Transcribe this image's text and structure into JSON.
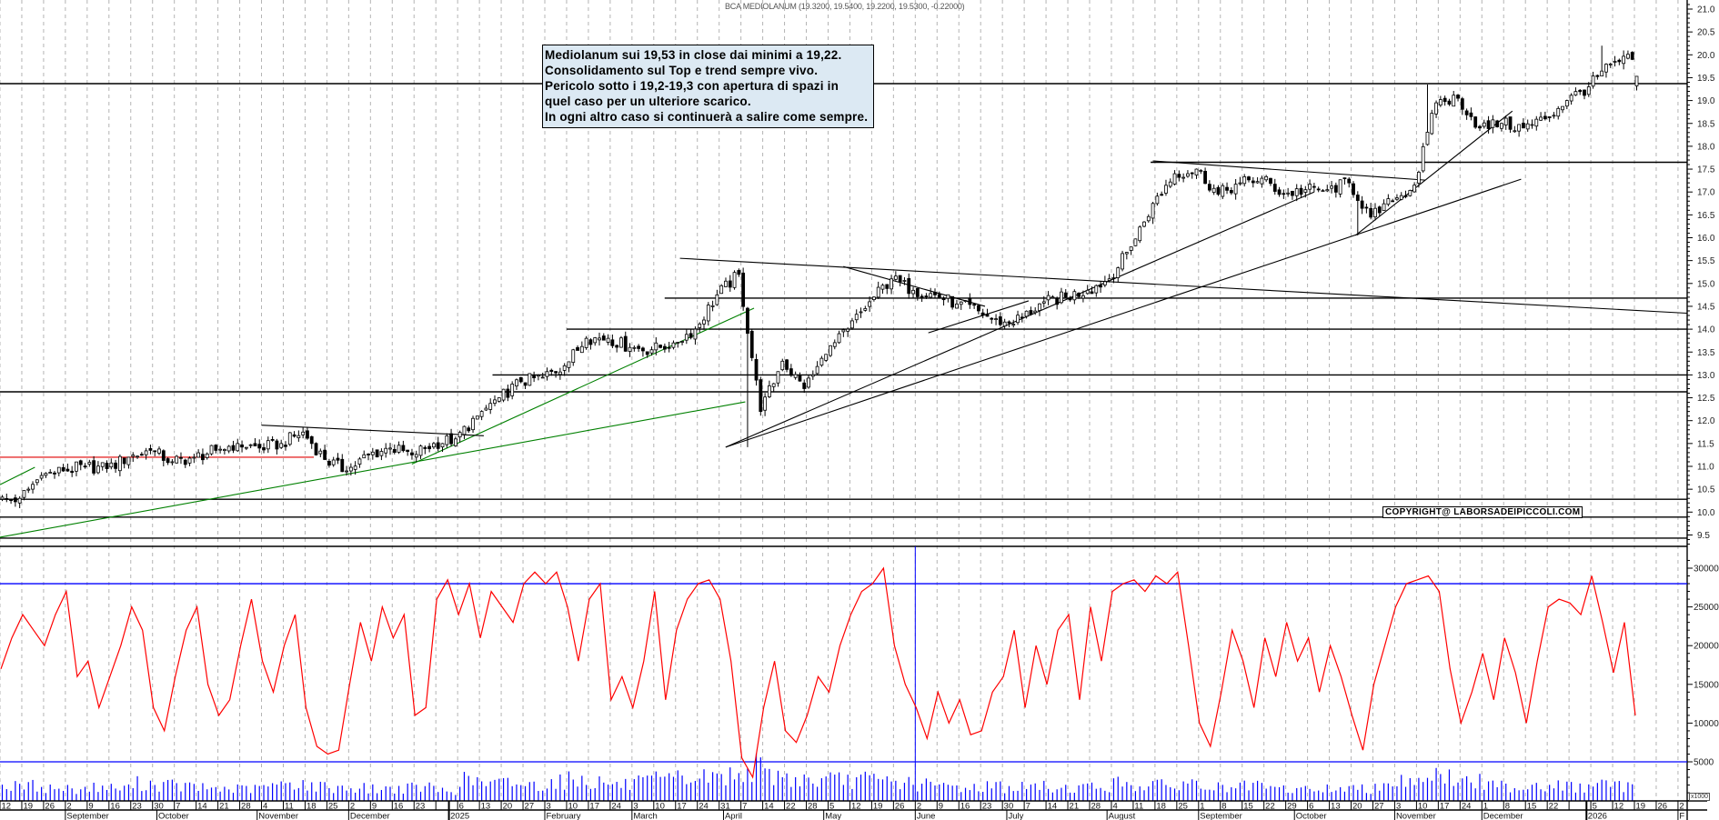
{
  "header": {
    "title": "BCA MEDIOLANUM (19.3200, 19.5400, 19.2200, 19.5300, -0.22000)"
  },
  "annotation": {
    "lines": [
      "Mediolanum sui 19,53 in close dai minimi a 19,22.",
      "Consolidamento sul Top e trend sempre vivo.",
      "Pericolo sotto i 19,2-19,3 con apertura di spazi in",
      "quel caso per un ulteriore scarico.",
      "In ogni altro caso si continuerà a salire come sempre."
    ]
  },
  "copyright": "COPYRIGHT@ LABORSADEIPICCOLI.COM",
  "chart_data": {
    "type": "candlestick",
    "title": "BCA MEDIOLANUM (19.3200, 19.5400, 19.2200, 19.5300, -0.22000)",
    "colors": {
      "up": "#ffffff",
      "down": "#000000",
      "grid": "#b4b4b4",
      "indicator": "#ff0000",
      "volume": "#0000ff",
      "levels_blue": "#0000ff",
      "green": "#008000",
      "red": "#e00000"
    },
    "x_tick_labels": [
      "12",
      "19",
      "26",
      "2",
      "9",
      "16",
      "23",
      "30",
      "7",
      "14",
      "21",
      "28",
      "4",
      "11",
      "18",
      "25",
      "2",
      "9",
      "16",
      "23",
      "",
      "6",
      "13",
      "20",
      "27",
      "3",
      "10",
      "17",
      "24",
      "3",
      "10",
      "17",
      "24",
      "31",
      "7",
      "14",
      "22",
      "28",
      "5",
      "12",
      "19",
      "26",
      "2",
      "9",
      "16",
      "23",
      "30",
      "7",
      "14",
      "21",
      "28",
      "4",
      "11",
      "18",
      "25",
      "1",
      "8",
      "15",
      "22",
      "29",
      "6",
      "13",
      "20",
      "27",
      "3",
      "10",
      "17",
      "24",
      "1",
      "8",
      "15",
      "22",
      "",
      "5",
      "12",
      "19",
      "26",
      "2"
    ],
    "month_labels": [
      {
        "label": "September",
        "week": 3
      },
      {
        "label": "October",
        "week": 7.2
      },
      {
        "label": "November",
        "week": 11.8
      },
      {
        "label": "December",
        "week": 16
      },
      {
        "label": "2025",
        "week": 20.6
      },
      {
        "label": "February",
        "week": 25
      },
      {
        "label": "March",
        "week": 29
      },
      {
        "label": "April",
        "week": 33.2
      },
      {
        "label": "May",
        "week": 37.8
      },
      {
        "label": "June",
        "week": 42
      },
      {
        "label": "July",
        "week": 46.2
      },
      {
        "label": "August",
        "week": 50.8
      },
      {
        "label": "September",
        "week": 55
      },
      {
        "label": "October",
        "week": 59.4
      },
      {
        "label": "November",
        "week": 64
      },
      {
        "label": "December",
        "week": 68
      },
      {
        "label": "2026",
        "week": 72.8
      },
      {
        "label": "F",
        "week": 77
      }
    ],
    "price_axis": {
      "min": 9.5,
      "max": 21.0,
      "ticks": [
        "9.5",
        "10.0",
        "10.5",
        "11.0",
        "11.5",
        "12.0",
        "12.5",
        "13.0",
        "13.5",
        "14.0",
        "14.5",
        "15.0",
        "15.5",
        "16.0",
        "16.5",
        "17.0",
        "17.5",
        "18.0",
        "18.5",
        "19.0",
        "19.5",
        "20.0",
        "20.5",
        "21.0"
      ]
    },
    "weekly_close": [
      10.3,
      10.8,
      10.9,
      11.0,
      10.95,
      11.2,
      11.35,
      11.1,
      11.2,
      11.35,
      11.5,
      11.4,
      11.5,
      11.75,
      11.15,
      10.9,
      11.25,
      11.4,
      11.25,
      11.5,
      11.6,
      12.1,
      12.5,
      12.85,
      12.95,
      13.2,
      13.8,
      13.8,
      13.6,
      13.55,
      13.7,
      14.0,
      14.75,
      15.2,
      12.2,
      13.3,
      12.7,
      13.45,
      14.0,
      14.6,
      15.1,
      14.85,
      14.75,
      14.55,
      14.4,
      14.1,
      14.25,
      14.6,
      14.7,
      14.85,
      15.1,
      15.8,
      16.75,
      17.4,
      17.5,
      16.95,
      17.2,
      17.3,
      16.95,
      17.05,
      17.05,
      17.2,
      16.45,
      16.8,
      17.15,
      18.95,
      19.05,
      18.4,
      18.5,
      18.4,
      18.6,
      19.0,
      19.3,
      19.8,
      19.9
    ],
    "last_candle": {
      "week": 75,
      "open": 19.32,
      "high": 19.54,
      "low": 19.22,
      "close": 19.53
    },
    "annotated_lows": [
      {
        "week": 34,
        "low": 11.42
      },
      {
        "week": 62,
        "low": 16.05
      }
    ],
    "annotated_highs": [
      {
        "week": 73,
        "high": 20.2
      },
      {
        "week": 65,
        "high": 19.35
      }
    ],
    "horizontal_levels": [
      {
        "price": 19.37,
        "from_week": 0
      },
      {
        "price": 17.65,
        "from_week": 52.8
      },
      {
        "price": 14.68,
        "from_week": 30.5
      },
      {
        "price": 14.0,
        "from_week": 26
      },
      {
        "price": 13.0,
        "from_week": 22.6
      },
      {
        "price": 12.63,
        "from_week": 0
      },
      {
        "price": 10.28,
        "from_week": 0
      },
      {
        "price": 9.89,
        "from_week": 0
      },
      {
        "price": 9.43,
        "from_week": 0
      }
    ],
    "trendlines": [
      {
        "color": "green",
        "points": [
          [
            0,
            9.45
          ],
          [
            34.2,
            12.41
          ]
        ]
      },
      {
        "color": "green",
        "points": [
          [
            18.9,
            11.05
          ],
          [
            34.6,
            14.46
          ]
        ]
      },
      {
        "color": "green",
        "points": [
          [
            0,
            10.6
          ],
          [
            1.6,
            10.98
          ]
        ]
      },
      {
        "color": "red",
        "points": [
          [
            0,
            11.2
          ],
          [
            14.4,
            11.2
          ]
        ]
      },
      {
        "color": "black",
        "points": [
          [
            12,
            11.9
          ],
          [
            22.2,
            11.67
          ]
        ]
      },
      {
        "color": "black",
        "points": [
          [
            31.2,
            15.55
          ],
          [
            77.4,
            14.35
          ]
        ]
      },
      {
        "color": "black",
        "points": [
          [
            33.3,
            11.42
          ],
          [
            60.3,
            17.0
          ]
        ]
      },
      {
        "color": "black",
        "points": [
          [
            33.3,
            11.42
          ],
          [
            69.8,
            17.28
          ]
        ]
      },
      {
        "color": "black",
        "points": [
          [
            38.7,
            15.37
          ],
          [
            45.2,
            14.5
          ]
        ]
      },
      {
        "color": "black",
        "points": [
          [
            42.6,
            13.92
          ],
          [
            47.2,
            14.62
          ]
        ]
      },
      {
        "color": "black",
        "points": [
          [
            52.9,
            17.68
          ],
          [
            65.4,
            17.26
          ]
        ]
      },
      {
        "color": "black",
        "points": [
          [
            62.2,
            16.05
          ],
          [
            69.4,
            18.77
          ]
        ]
      }
    ],
    "indicator": {
      "ticks": [
        "5000",
        "10000",
        "15000",
        "20000",
        "25000",
        "30000"
      ],
      "levels": [
        28000,
        5000
      ],
      "vline_week": 42,
      "values": [
        17000,
        21000,
        24000,
        22000,
        20000,
        24000,
        27000,
        16000,
        18000,
        12000,
        16000,
        20000,
        25000,
        22000,
        12000,
        9000,
        16000,
        22000,
        25000,
        15000,
        11000,
        13000,
        20000,
        26000,
        18000,
        14000,
        20000,
        24000,
        12000,
        7000,
        6000,
        6500,
        15000,
        23000,
        18000,
        25000,
        21000,
        24000,
        11000,
        12000,
        26000,
        28500,
        24000,
        28000,
        21000,
        27000,
        25000,
        23000,
        28000,
        29500,
        28000,
        29500,
        25000,
        18000,
        26000,
        28000,
        13000,
        16000,
        12000,
        18000,
        27000,
        13000,
        22000,
        26000,
        28000,
        28500,
        26000,
        18000,
        5500,
        3000,
        12000,
        18000,
        9000,
        7500,
        11000,
        16000,
        14000,
        20000,
        24000,
        27000,
        28000,
        30000,
        20000,
        15000,
        12000,
        8000,
        14000,
        10000,
        13000,
        8500,
        9000,
        14000,
        16000,
        22000,
        12000,
        20000,
        15000,
        22000,
        24000,
        13000,
        25000,
        18000,
        27000,
        28000,
        28500,
        27000,
        29000,
        28000,
        29500,
        20000,
        10000,
        7000,
        14000,
        22000,
        18000,
        12000,
        21000,
        16000,
        23000,
        18000,
        21000,
        14000,
        20000,
        16000,
        11000,
        6500,
        15000,
        20000,
        25000,
        28000,
        28500,
        29000,
        27000,
        17000,
        10000,
        14000,
        19000,
        13000,
        21000,
        16500,
        10000,
        18000,
        25000,
        26000,
        25500,
        24000,
        29000,
        23000,
        16500,
        23000,
        11000
      ]
    },
    "volume": {
      "unit_label": "x1000",
      "weekly_avg": [
        1800,
        1900,
        1600,
        1500,
        1700,
        1600,
        2200,
        2000,
        1800,
        1600,
        1500,
        1500,
        1900,
        2300,
        1800,
        1700,
        1600,
        1500,
        1600,
        1700,
        1300,
        2600,
        2100,
        2300,
        2000,
        2500,
        2700,
        2400,
        2000,
        2300,
        2600,
        2800,
        3000,
        3200,
        4200,
        3300,
        2800,
        2500,
        2600,
        2700,
        2500,
        2300,
        2000,
        1800,
        1700,
        1900,
        1700,
        1800,
        1600,
        1700,
        1800,
        2200,
        2000,
        1900,
        2200,
        1700,
        1600,
        1800,
        1500,
        1400,
        1500,
        1600,
        1500,
        2200,
        2600,
        3300,
        2900,
        2400,
        2000,
        1800,
        2000,
        1900,
        1700,
        2000,
        1800
      ]
    }
  }
}
